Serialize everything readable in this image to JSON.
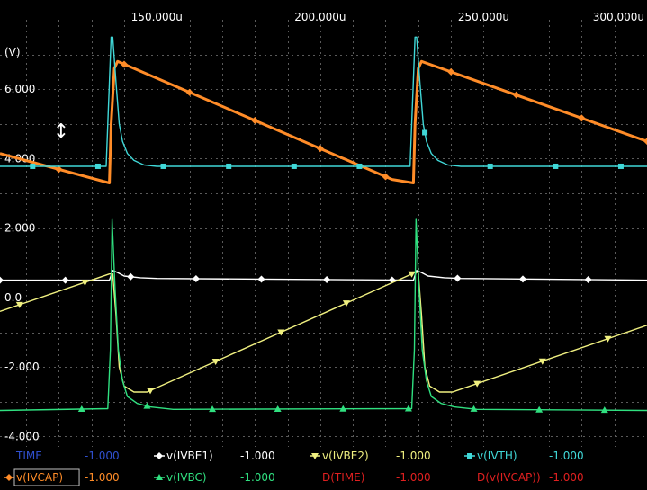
{
  "chart_data": {
    "type": "line",
    "title": "",
    "xlabel": "",
    "ylabel": "(V)",
    "xlim": [
      102,
      300
    ],
    "ylim": [
      -4.3,
      8.0
    ],
    "x_ticks": [
      "150.000u",
      "200.000u",
      "250.000u",
      "300.000u"
    ],
    "x_tick_values": [
      150,
      200,
      250,
      300
    ],
    "y_ticks": [
      "6.000",
      "4.000",
      "2.000",
      "0.0",
      "-2.000",
      "-4.000"
    ],
    "y_tick_values": [
      6,
      4,
      2,
      0,
      -2,
      -4
    ],
    "grid": true,
    "background": "#000000",
    "series": [
      {
        "name": "v(IVCAP)",
        "color": "#ff8c28",
        "marker": "diamond",
        "x": [
          102,
          135.5,
          136,
          137,
          138,
          222,
          228.5,
          229,
          230,
          231,
          300
        ],
        "y": [
          4.15,
          3.3,
          5.0,
          6.6,
          6.8,
          3.4,
          3.3,
          5.0,
          6.6,
          6.8,
          4.5
        ]
      },
      {
        "name": "v(IVTH)",
        "color": "#40d8d8",
        "marker": "square",
        "x": [
          102,
          134.5,
          136.0,
          136.5,
          137.5,
          138.5,
          139.5,
          141,
          143,
          146,
          150,
          227.5,
          229.0,
          229.5,
          230.5,
          231.5,
          232.5,
          234,
          236,
          239,
          243,
          300
        ],
        "y": [
          3.78,
          3.78,
          7.5,
          7.5,
          6.2,
          5.0,
          4.5,
          4.15,
          3.95,
          3.82,
          3.78,
          3.78,
          7.5,
          7.5,
          6.2,
          5.0,
          4.5,
          4.15,
          3.95,
          3.82,
          3.78,
          3.78
        ]
      },
      {
        "name": "v(IVBE1)",
        "color": "#ffffff",
        "marker": "diamond",
        "x": [
          102,
          135.5,
          136.5,
          138,
          140,
          145,
          150,
          228.5,
          229.5,
          231,
          233,
          238,
          243,
          300
        ],
        "y": [
          0.5,
          0.5,
          0.78,
          0.72,
          0.62,
          0.57,
          0.55,
          0.5,
          0.78,
          0.72,
          0.62,
          0.57,
          0.55,
          0.5
        ]
      },
      {
        "name": "v(IVBE2)",
        "color": "#f0f080",
        "marker": "triangle-down",
        "x": [
          102,
          135.5,
          136.5,
          137.5,
          138.5,
          140,
          143,
          147,
          229,
          230,
          231,
          232,
          233.5,
          236.5,
          240.5,
          300
        ],
        "y": [
          -0.4,
          0.68,
          0.68,
          -0.5,
          -2.0,
          -2.55,
          -2.72,
          -2.72,
          0.72,
          0.72,
          -0.5,
          -2.0,
          -2.55,
          -2.72,
          -2.72,
          -0.8
        ]
      },
      {
        "name": "v(IVBC)",
        "color": "#30e080",
        "marker": "triangle-up",
        "x": [
          102,
          135.0,
          135.8,
          136.3,
          137.2,
          138.2,
          139.5,
          141,
          144,
          148,
          155,
          228,
          228.8,
          229.3,
          230.2,
          231.2,
          232.5,
          234,
          237,
          241,
          248,
          300
        ],
        "y": [
          -3.25,
          -3.2,
          -1.5,
          2.25,
          0.3,
          -1.5,
          -2.4,
          -2.85,
          -3.05,
          -3.15,
          -3.22,
          -3.2,
          -1.5,
          2.25,
          0.3,
          -1.5,
          -2.4,
          -2.85,
          -3.05,
          -3.15,
          -3.22,
          -3.25
        ]
      }
    ],
    "legend": [
      {
        "name": "TIME",
        "value": "-1.000",
        "color": "#3050d0",
        "value_color": "#3050d0",
        "marker": "none"
      },
      {
        "name": "v(IVBE1)",
        "value": "-1.000",
        "color": "#ffffff",
        "value_color": "#ffffff",
        "marker": "diamond"
      },
      {
        "name": "v(IVBE2)",
        "value": "-1.000",
        "color": "#f0f080",
        "value_color": "#f0f080",
        "marker": "triangle-down"
      },
      {
        "name": "v(IVTH)",
        "value": "-1.000",
        "color": "#40d8d8",
        "value_color": "#40d8d8",
        "marker": "square"
      },
      {
        "name": "v(IVCAP)",
        "value": "-1.000",
        "color": "#ff8c28",
        "value_color": "#ff8c28",
        "marker": "diamond",
        "selected": true
      },
      {
        "name": "v(IVBC)",
        "value": "-1.000",
        "color": "#30e080",
        "value_color": "#30e080",
        "marker": "triangle-up"
      },
      {
        "name": "D(TIME)",
        "value": "-1.000",
        "color": "#e02020",
        "value_color": "#e02020",
        "marker": "none"
      },
      {
        "name": "D(v(IVCAP))",
        "value": "-1.000",
        "color": "#e02020",
        "value_color": "#e02020",
        "marker": "none"
      }
    ]
  },
  "ui": {
    "resize_cursor_glyph": "↕"
  }
}
